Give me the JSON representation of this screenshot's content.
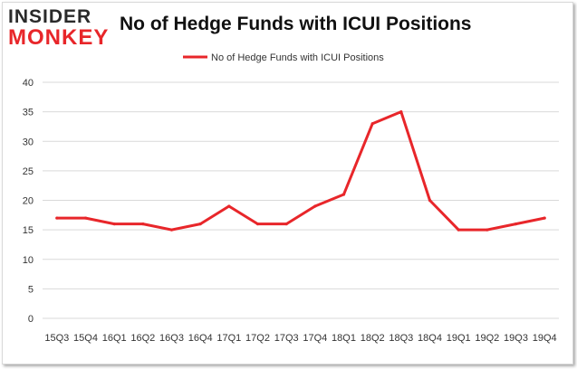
{
  "logo": {
    "line1": "INSIDER",
    "line2": "MONKEY"
  },
  "colors": {
    "series": "#e8262a",
    "grid": "#d9d9d9",
    "text": "#333333"
  },
  "chart_data": {
    "type": "line",
    "title": "No of Hedge Funds with ICUI Positions",
    "xlabel": "",
    "ylabel": "",
    "categories": [
      "15Q3",
      "15Q4",
      "16Q1",
      "16Q2",
      "16Q3",
      "16Q4",
      "17Q1",
      "17Q2",
      "17Q3",
      "17Q4",
      "18Q1",
      "18Q2",
      "18Q3",
      "18Q4",
      "19Q1",
      "19Q2",
      "19Q3",
      "19Q4"
    ],
    "series": [
      {
        "name": "No of Hedge Funds with ICUI Positions",
        "values": [
          17,
          17,
          16,
          16,
          15,
          16,
          19,
          16,
          16,
          19,
          21,
          33,
          35,
          20,
          15,
          15,
          16,
          17
        ]
      }
    ],
    "ylim": [
      0,
      40
    ],
    "yticks": [
      0,
      5,
      10,
      15,
      20,
      25,
      30,
      35,
      40
    ],
    "grid": "horizontal",
    "legend": "top-center"
  }
}
